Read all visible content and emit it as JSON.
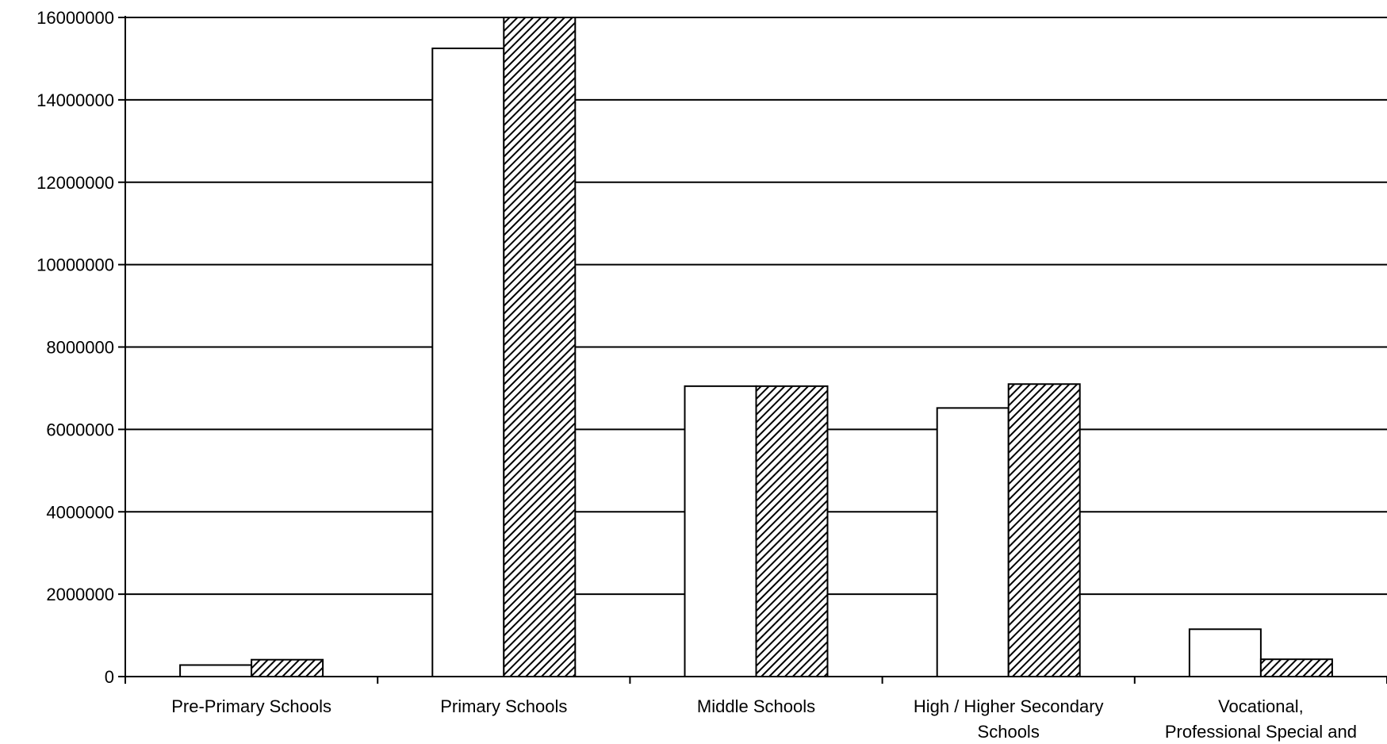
{
  "chart_data": {
    "type": "bar",
    "title": "",
    "xlabel": "",
    "ylabel": "",
    "ylim": [
      0,
      16000000
    ],
    "yticks": [
      "0",
      "2000000",
      "4000000",
      "6000000",
      "8000000",
      "10000000",
      "12000000",
      "14000000",
      "16000000"
    ],
    "grid": true,
    "legend": "none",
    "categories": [
      [
        "Pre-Primary Schools"
      ],
      [
        "Primary Schools"
      ],
      [
        "Middle Schools"
      ],
      [
        "High / Higher Secondary",
        "Schools"
      ],
      [
        "Vocational,",
        "Professional Special and"
      ]
    ],
    "series": [
      {
        "values": [
          280000,
          15250000,
          7050000,
          6520000,
          1150000
        ],
        "fill": "#ffffff"
      },
      {
        "values": [
          410000,
          16000000,
          7050000,
          7100000,
          420000
        ],
        "fill": "hatched"
      }
    ]
  }
}
